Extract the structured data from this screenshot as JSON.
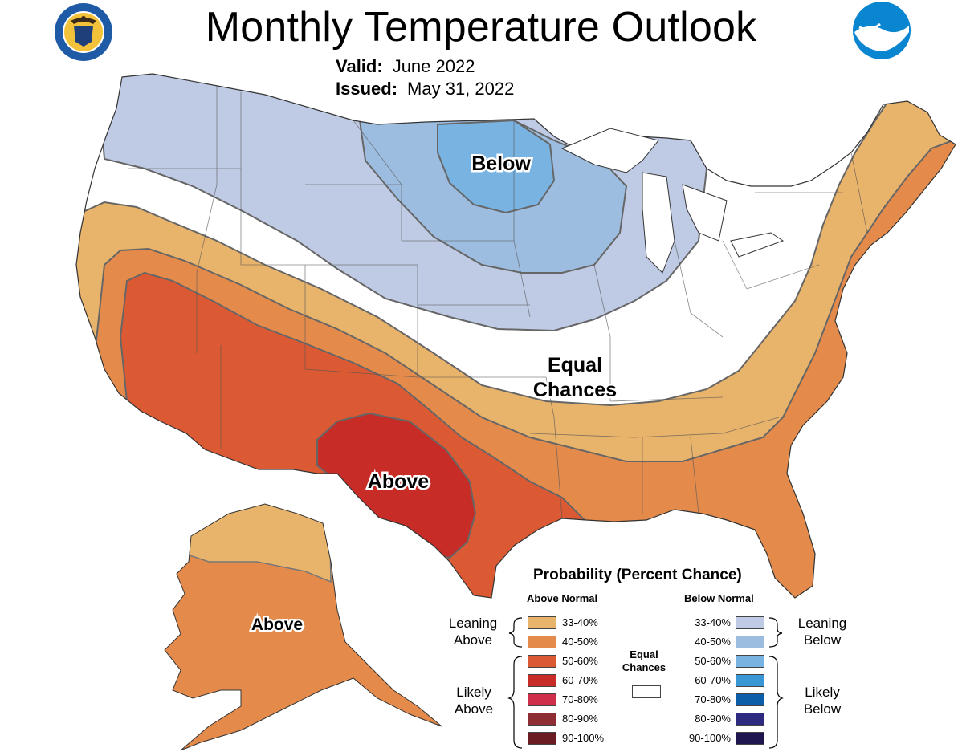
{
  "header": {
    "title": "Monthly Temperature Outlook",
    "valid_label": "Valid:",
    "valid_value": "June 2022",
    "issued_label": "Issued:",
    "issued_value": "May 31, 2022",
    "logos": [
      "department-of-commerce-seal",
      "noaa-logo"
    ]
  },
  "map": {
    "regions": {
      "below": "Below",
      "equal": [
        "Equal",
        "Chances"
      ],
      "above": "Above",
      "alaska_above": "Above"
    },
    "colors": {
      "above_33_40": "#e8b36a",
      "above_40_50": "#e48b4c",
      "above_50_60": "#dc5a33",
      "above_60_70": "#c72c27",
      "below_33_40": "#bfcbe5",
      "below_40_50": "#9dbde0",
      "below_50_60": "#78b3e2",
      "equal": "#ffffff"
    }
  },
  "legend": {
    "title": "Probability (Percent Chance)",
    "above_header": "Above Normal",
    "below_header": "Below Normal",
    "leaning_above": [
      "Leaning",
      "Above"
    ],
    "likely_above": [
      "Likely",
      "Above"
    ],
    "leaning_below": [
      "Leaning",
      "Below"
    ],
    "likely_below": [
      "Likely",
      "Below"
    ],
    "equal_chances": [
      "Equal",
      "Chances"
    ],
    "above": [
      {
        "label": "33-40%",
        "color": "#e8b36a"
      },
      {
        "label": "40-50%",
        "color": "#e48b4c"
      },
      {
        "label": "50-60%",
        "color": "#dc5a33"
      },
      {
        "label": "60-70%",
        "color": "#c72c27"
      },
      {
        "label": "70-80%",
        "color": "#cf2f4b"
      },
      {
        "label": "80-90%",
        "color": "#8f2d35"
      },
      {
        "label": "90-100%",
        "color": "#6b1b22"
      }
    ],
    "below": [
      {
        "label": "33-40%",
        "color": "#bfcbe5"
      },
      {
        "label": "40-50%",
        "color": "#9dbde0"
      },
      {
        "label": "50-60%",
        "color": "#78b3e2"
      },
      {
        "label": "60-70%",
        "color": "#3a97d6"
      },
      {
        "label": "70-80%",
        "color": "#0d5ea8"
      },
      {
        "label": "80-90%",
        "color": "#2e2a80"
      },
      {
        "label": "90-100%",
        "color": "#1f1650"
      }
    ]
  }
}
